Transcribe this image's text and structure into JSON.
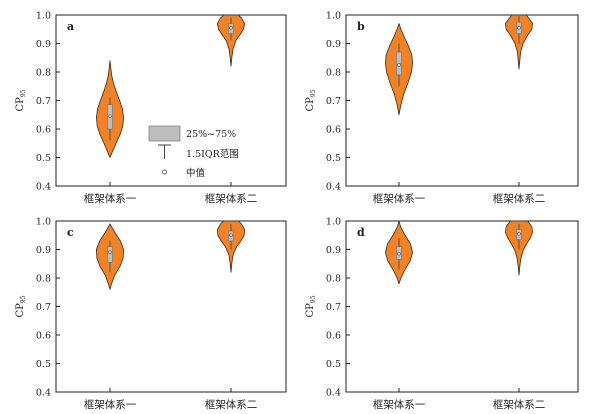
{
  "chart_data": [
    {
      "type": "violin",
      "panel": "a",
      "categories": [
        "框架体系一",
        "框架体系二"
      ],
      "ylabel": "CP95",
      "ylim": [
        0.4,
        1.0
      ],
      "yticks": [
        0.4,
        0.5,
        0.6,
        0.7,
        0.8,
        0.9,
        1.0
      ],
      "violins": [
        {
          "category": "框架体系一",
          "min": 0.5,
          "max": 0.84,
          "q1": 0.6,
          "median": 0.645,
          "q3": 0.685,
          "whisker_low": 0.56,
          "whisker_high": 0.71,
          "profile": [
            [
              0.5,
              0.0
            ],
            [
              0.52,
              0.15
            ],
            [
              0.55,
              0.38
            ],
            [
              0.58,
              0.62
            ],
            [
              0.61,
              0.8
            ],
            [
              0.64,
              0.85
            ],
            [
              0.67,
              0.78
            ],
            [
              0.7,
              0.6
            ],
            [
              0.73,
              0.4
            ],
            [
              0.76,
              0.22
            ],
            [
              0.79,
              0.1
            ],
            [
              0.82,
              0.04
            ],
            [
              0.84,
              0.0
            ]
          ]
        },
        {
          "category": "框架体系二",
          "min": 0.82,
          "max": 1.0,
          "q1": 0.935,
          "median": 0.955,
          "q3": 0.97,
          "whisker_low": 0.91,
          "whisker_high": 0.99,
          "profile": [
            [
              0.82,
              0.0
            ],
            [
              0.85,
              0.05
            ],
            [
              0.88,
              0.12
            ],
            [
              0.91,
              0.3
            ],
            [
              0.93,
              0.55
            ],
            [
              0.95,
              0.78
            ],
            [
              0.97,
              0.85
            ],
            [
              0.99,
              0.65
            ],
            [
              1.0,
              0.45
            ]
          ]
        }
      ]
    },
    {
      "type": "violin",
      "panel": "b",
      "categories": [
        "框架体系一",
        "框架体系二"
      ],
      "ylabel": "CP95",
      "ylim": [
        0.4,
        1.0
      ],
      "yticks": [
        0.4,
        0.5,
        0.6,
        0.7,
        0.8,
        0.9,
        1.0
      ],
      "violins": [
        {
          "category": "框架体系一",
          "min": 0.65,
          "max": 0.97,
          "q1": 0.79,
          "median": 0.825,
          "q3": 0.87,
          "whisker_low": 0.75,
          "whisker_high": 0.9,
          "profile": [
            [
              0.65,
              0.0
            ],
            [
              0.68,
              0.1
            ],
            [
              0.72,
              0.28
            ],
            [
              0.76,
              0.55
            ],
            [
              0.8,
              0.78
            ],
            [
              0.83,
              0.85
            ],
            [
              0.86,
              0.8
            ],
            [
              0.89,
              0.6
            ],
            [
              0.92,
              0.35
            ],
            [
              0.95,
              0.12
            ],
            [
              0.97,
              0.0
            ]
          ]
        },
        {
          "category": "框架体系二",
          "min": 0.81,
          "max": 1.0,
          "q1": 0.935,
          "median": 0.955,
          "q3": 0.975,
          "whisker_low": 0.9,
          "whisker_high": 0.995,
          "profile": [
            [
              0.81,
              0.0
            ],
            [
              0.84,
              0.05
            ],
            [
              0.87,
              0.1
            ],
            [
              0.9,
              0.25
            ],
            [
              0.93,
              0.55
            ],
            [
              0.95,
              0.8
            ],
            [
              0.97,
              0.85
            ],
            [
              0.99,
              0.6
            ],
            [
              1.0,
              0.45
            ]
          ]
        }
      ]
    },
    {
      "type": "violin",
      "panel": "c",
      "categories": [
        "框架体系一",
        "框架体系二"
      ],
      "ylabel": "CP95",
      "ylim": [
        0.4,
        1.0
      ],
      "yticks": [
        0.4,
        0.5,
        0.6,
        0.7,
        0.8,
        0.9,
        1.0
      ],
      "violins": [
        {
          "category": "框架体系一",
          "min": 0.76,
          "max": 0.99,
          "q1": 0.855,
          "median": 0.89,
          "q3": 0.91,
          "whisker_low": 0.82,
          "whisker_high": 0.93,
          "profile": [
            [
              0.76,
              0.0
            ],
            [
              0.78,
              0.1
            ],
            [
              0.81,
              0.3
            ],
            [
              0.84,
              0.62
            ],
            [
              0.87,
              0.82
            ],
            [
              0.9,
              0.85
            ],
            [
              0.93,
              0.65
            ],
            [
              0.96,
              0.3
            ],
            [
              0.99,
              0.0
            ]
          ]
        },
        {
          "category": "框架体系二",
          "min": 0.82,
          "max": 1.0,
          "q1": 0.93,
          "median": 0.95,
          "q3": 0.965,
          "whisker_low": 0.9,
          "whisker_high": 0.99,
          "profile": [
            [
              0.82,
              0.0
            ],
            [
              0.85,
              0.05
            ],
            [
              0.88,
              0.12
            ],
            [
              0.91,
              0.35
            ],
            [
              0.93,
              0.62
            ],
            [
              0.95,
              0.82
            ],
            [
              0.97,
              0.85
            ],
            [
              0.99,
              0.65
            ],
            [
              1.0,
              0.45
            ]
          ]
        }
      ]
    },
    {
      "type": "violin",
      "panel": "d",
      "categories": [
        "框架体系一",
        "框架体系二"
      ],
      "ylabel": "CP95",
      "ylim": [
        0.4,
        1.0
      ],
      "yticks": [
        0.4,
        0.5,
        0.6,
        0.7,
        0.8,
        0.9,
        1.0
      ],
      "violins": [
        {
          "category": "框架体系一",
          "min": 0.78,
          "max": 1.0,
          "q1": 0.865,
          "median": 0.885,
          "q3": 0.91,
          "whisker_low": 0.83,
          "whisker_high": 0.94,
          "profile": [
            [
              0.78,
              0.0
            ],
            [
              0.8,
              0.12
            ],
            [
              0.83,
              0.38
            ],
            [
              0.86,
              0.7
            ],
            [
              0.89,
              0.85
            ],
            [
              0.92,
              0.72
            ],
            [
              0.95,
              0.38
            ],
            [
              0.98,
              0.1
            ],
            [
              1.0,
              0.0
            ]
          ]
        },
        {
          "category": "框架体系二",
          "min": 0.81,
          "max": 1.0,
          "q1": 0.935,
          "median": 0.955,
          "q3": 0.97,
          "whisker_low": 0.9,
          "whisker_high": 0.99,
          "profile": [
            [
              0.81,
              0.0
            ],
            [
              0.84,
              0.05
            ],
            [
              0.87,
              0.12
            ],
            [
              0.9,
              0.28
            ],
            [
              0.92,
              0.48
            ],
            [
              0.94,
              0.7
            ],
            [
              0.96,
              0.85
            ],
            [
              0.98,
              0.8
            ],
            [
              1.0,
              0.55
            ]
          ]
        }
      ]
    }
  ],
  "legend": {
    "box_label": "25%~75%",
    "whisker_label": "1.5IQR范围",
    "median_label": "中值",
    "placement": "panel-a-center"
  },
  "colors": {
    "violin_fill": "#f08228",
    "violin_edge": "#3a2a1a",
    "box_fill": "#bdbdbd",
    "axis": "#222222"
  }
}
